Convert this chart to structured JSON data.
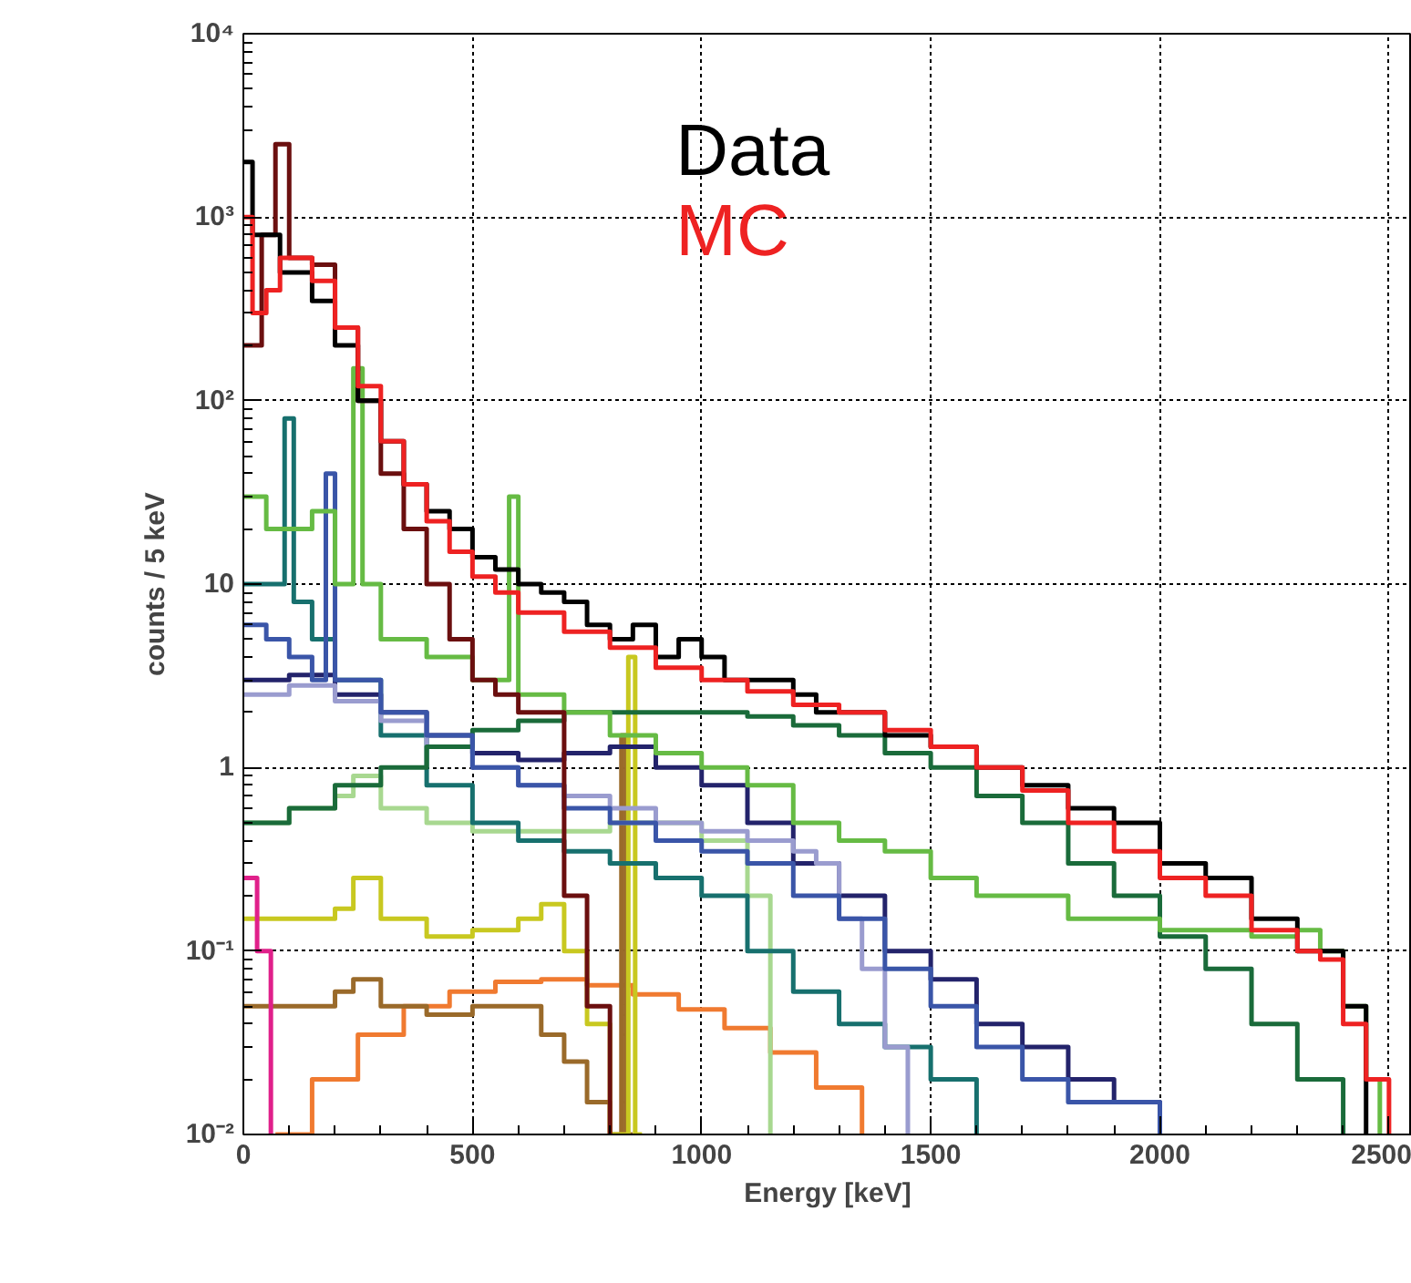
{
  "chart_data": {
    "type": "step",
    "xlabel": "Energy [keV]",
    "ylabel": "counts / 5 keV",
    "log": "y",
    "grid": true,
    "legend": "top",
    "xlim": [
      0,
      2550
    ],
    "xticks": [
      0,
      500,
      1000,
      1500,
      2000,
      2500
    ],
    "ylim": [
      0.01,
      10000
    ],
    "yticks": [
      {
        "value": 0.01,
        "label": "10⁻²"
      },
      {
        "value": 0.1,
        "label": "10⁻¹"
      },
      1,
      10,
      {
        "value": 100,
        "label": "10²"
      },
      {
        "value": 1000,
        "label": "10³"
      },
      {
        "value": 10000,
        "label": "10⁴"
      }
    ],
    "series": [
      {
        "color": "#f07a30",
        "x": [
          70,
          150,
          250,
          350,
          450,
          550,
          650,
          750,
          850,
          950,
          1050,
          1150,
          1250,
          1350
        ],
        "values": [
          0.01,
          0.02,
          0.035,
          0.05,
          0.06,
          0.068,
          0.07,
          0.065,
          0.058,
          0.048,
          0.038,
          0.028,
          0.018,
          0.01
        ]
      },
      {
        "color": "#9a6a2a",
        "x": [
          0,
          100,
          200,
          240,
          300,
          400,
          500,
          600,
          650,
          700,
          750,
          800,
          825,
          835,
          850
        ],
        "values": [
          0.05,
          0.05,
          0.06,
          0.07,
          0.05,
          0.045,
          0.05,
          0.05,
          0.035,
          0.025,
          0.015,
          0.01,
          1.5,
          0.01,
          0.01
        ]
      },
      {
        "color": "#c8c820",
        "x": [
          0,
          100,
          200,
          240,
          300,
          400,
          500,
          600,
          650,
          700,
          750,
          800,
          840,
          855,
          870
        ],
        "values": [
          0.15,
          0.15,
          0.17,
          0.25,
          0.15,
          0.12,
          0.13,
          0.15,
          0.18,
          0.1,
          0.04,
          0.01,
          4,
          0.01,
          0.01
        ]
      },
      {
        "color": "#e0208a",
        "x": [
          0,
          30,
          60
        ],
        "values": [
          0.25,
          0.1,
          0.01
        ]
      },
      {
        "color": "#a8d890",
        "x": [
          0,
          100,
          200,
          240,
          300,
          400,
          500,
          600,
          800,
          1000,
          1100,
          1150
        ],
        "values": [
          0.5,
          0.6,
          0.7,
          0.9,
          0.6,
          0.5,
          0.45,
          0.45,
          0.5,
          0.4,
          0.2,
          0.01
        ]
      },
      {
        "color": "#17706e",
        "x": [
          0,
          90,
          110,
          150,
          200,
          300,
          400,
          500,
          600,
          700,
          800,
          900,
          1000,
          1100,
          1200,
          1300,
          1400,
          1500,
          1600
        ],
        "values": [
          10,
          80,
          8,
          5,
          3,
          1.5,
          0.8,
          0.5,
          0.4,
          0.35,
          0.3,
          0.25,
          0.2,
          0.1,
          0.06,
          0.04,
          0.03,
          0.02,
          0.01
        ]
      },
      {
        "color": "#23236b",
        "x": [
          0,
          100,
          200,
          300,
          400,
          500,
          600,
          700,
          800,
          900,
          1000,
          1100,
          1200,
          1300,
          1400,
          1500,
          1600,
          1700,
          1800,
          1900,
          2000
        ],
        "values": [
          3,
          3.2,
          2.5,
          2,
          1.5,
          1.2,
          1.1,
          1.2,
          1.3,
          1.0,
          0.8,
          0.5,
          0.3,
          0.2,
          0.1,
          0.07,
          0.04,
          0.03,
          0.02,
          0.015,
          0.01
        ]
      },
      {
        "color": "#9a9ccf",
        "x": [
          0,
          100,
          200,
          300,
          400,
          500,
          600,
          700,
          800,
          900,
          1000,
          1100,
          1200,
          1250,
          1300,
          1350,
          1400,
          1450
        ],
        "values": [
          2.5,
          2.8,
          2.3,
          1.8,
          1.3,
          1,
          0.8,
          0.7,
          0.6,
          0.5,
          0.45,
          0.4,
          0.35,
          0.3,
          0.15,
          0.08,
          0.03,
          0.01
        ]
      },
      {
        "color": "#1a6b3a",
        "x": [
          0,
          100,
          200,
          300,
          400,
          500,
          600,
          700,
          800,
          900,
          1000,
          1100,
          1200,
          1300,
          1400,
          1500,
          1600,
          1700,
          1800,
          1900,
          2000,
          2100,
          2200,
          2300,
          2400
        ],
        "values": [
          0.5,
          0.6,
          0.8,
          1,
          1.3,
          1.6,
          1.8,
          2,
          2,
          2,
          2,
          1.9,
          1.7,
          1.5,
          1.2,
          1,
          0.7,
          0.5,
          0.3,
          0.2,
          0.12,
          0.08,
          0.04,
          0.02,
          0.01
        ]
      },
      {
        "color": "#3a55a8",
        "x": [
          0,
          50,
          100,
          150,
          180,
          200,
          300,
          400,
          500,
          600,
          700,
          800,
          900,
          1000,
          1100,
          1200,
          1300,
          1400,
          1500,
          1600,
          1700,
          1800,
          2000
        ],
        "values": [
          6,
          5,
          4,
          3,
          40,
          3,
          2,
          1.5,
          1,
          0.8,
          0.6,
          0.5,
          0.4,
          0.35,
          0.3,
          0.2,
          0.15,
          0.08,
          0.05,
          0.03,
          0.02,
          0.015,
          0.01
        ]
      },
      {
        "color": "#66bb44",
        "x": [
          0,
          50,
          150,
          200,
          240,
          260,
          300,
          400,
          500,
          580,
          600,
          700,
          800,
          900,
          1000,
          1100,
          1200,
          1300,
          1400,
          1500,
          1600,
          1800,
          2000,
          2200,
          2300,
          2350,
          2400,
          2450,
          2480
        ],
        "values": [
          30,
          20,
          25,
          10,
          150,
          10,
          5,
          4,
          3,
          30,
          2.5,
          2,
          1.5,
          1.2,
          1,
          0.8,
          0.5,
          0.4,
          0.35,
          0.25,
          0.2,
          0.15,
          0.13,
          0.12,
          0.13,
          0.1,
          0.05,
          0.02,
          0.01
        ]
      },
      {
        "color": "#6b0f0f",
        "x": [
          0,
          40,
          70,
          100,
          150,
          200,
          250,
          300,
          350,
          400,
          450,
          500,
          550,
          600,
          700,
          750,
          800
        ],
        "values": [
          200,
          800,
          2500,
          600,
          550,
          250,
          100,
          40,
          20,
          10,
          5,
          3,
          2.5,
          2,
          0.2,
          0.05,
          0.01
        ]
      },
      {
        "name": "Data",
        "color": "#000000",
        "x": [
          0,
          20,
          50,
          80,
          100,
          150,
          200,
          250,
          300,
          350,
          400,
          450,
          500,
          550,
          600,
          650,
          700,
          750,
          800,
          850,
          900,
          950,
          1000,
          1050,
          1100,
          1150,
          1200,
          1250,
          1300,
          1400,
          1500,
          1600,
          1700,
          1800,
          1900,
          2000,
          2100,
          2200,
          2300,
          2400,
          2450
        ],
        "values": [
          2000,
          800,
          800,
          500,
          500,
          350,
          200,
          100,
          60,
          35,
          25,
          20,
          14,
          12,
          10,
          9,
          8,
          6,
          5,
          6,
          4,
          5,
          4,
          3,
          3,
          3,
          2.5,
          2,
          2,
          1.5,
          1.3,
          1,
          0.8,
          0.6,
          0.5,
          0.3,
          0.25,
          0.15,
          0.1,
          0.05,
          0.01
        ]
      },
      {
        "name": "MC",
        "color": "#ee2222",
        "x": [
          0,
          20,
          50,
          80,
          100,
          150,
          200,
          250,
          300,
          350,
          400,
          450,
          500,
          550,
          600,
          700,
          800,
          900,
          1000,
          1100,
          1200,
          1300,
          1400,
          1500,
          1600,
          1700,
          1800,
          1900,
          2000,
          2100,
          2200,
          2300,
          2350,
          2400,
          2450,
          2500
        ],
        "values": [
          1000,
          300,
          400,
          600,
          600,
          450,
          250,
          120,
          60,
          35,
          22,
          15,
          11,
          9,
          7,
          5.5,
          4.5,
          3.5,
          3,
          2.6,
          2.2,
          2,
          1.6,
          1.3,
          1.0,
          0.75,
          0.5,
          0.35,
          0.25,
          0.2,
          0.13,
          0.1,
          0.09,
          0.04,
          0.02,
          0.01
        ]
      }
    ]
  }
}
